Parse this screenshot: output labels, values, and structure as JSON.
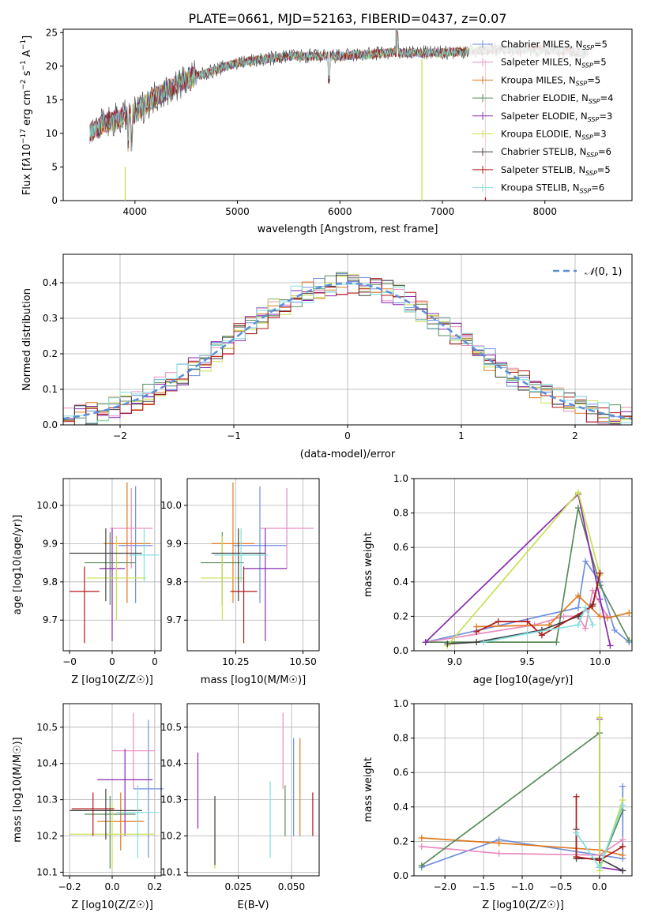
{
  "figure_title": "PLATE=0661, MJD=52163, FIBERID=0437, z=0.07",
  "colors": {
    "chabrier_miles": "#6f8fe0",
    "salpeter_miles": "#e88cc0",
    "kroupa_miles": "#e07a20",
    "chabrier_elodie": "#5a8a5a",
    "salpeter_elodie": "#8a2ab0",
    "kroupa_elodie": "#c8e050",
    "chabrier_stelib": "#404040",
    "salpeter_stelib": "#b01818",
    "kroupa_stelib": "#80dede"
  },
  "chart_data": [
    {
      "id": "spectrum",
      "type": "line",
      "xlabel": "wavelength [Angstrom, rest frame]",
      "ylabel": "Flux [f_λ10^-17 erg cm^-2 s^-1 A^-1]",
      "xlim": [
        3300,
        8850
      ],
      "ylim": [
        0,
        25.5
      ],
      "xticks": [
        4000,
        5000,
        6000,
        7000,
        8000
      ],
      "yticks": [
        0,
        5,
        10,
        15,
        20,
        25
      ],
      "grid": false,
      "legend_position": "right",
      "series": [
        {
          "name": "Chabrier MILES, N_SSP=5",
          "key": "chabrier_miles"
        },
        {
          "name": "Salpeter MILES, N_SSP=5",
          "key": "salpeter_miles"
        },
        {
          "name": "Kroupa MILES, N_SSP=5",
          "key": "kroupa_miles"
        },
        {
          "name": "Chabrier ELODIE, N_SSP=4",
          "key": "chabrier_elodie"
        },
        {
          "name": "Salpeter ELODIE, N_SSP=3",
          "key": "salpeter_elodie"
        },
        {
          "name": "Kroupa ELODIE, N_SSP=3",
          "key": "kroupa_elodie"
        },
        {
          "name": "Chabrier STELIB, N_SSP=6",
          "key": "chabrier_stelib"
        },
        {
          "name": "Salpeter STELIB, N_SSP=5",
          "key": "salpeter_stelib"
        },
        {
          "name": "Kroupa STELIB, N_SSP=6",
          "key": "kroupa_stelib"
        }
      ],
      "continuum": [
        [
          3550,
          10
        ],
        [
          3700,
          11.5
        ],
        [
          3900,
          12.5
        ],
        [
          4000,
          13
        ],
        [
          4200,
          15.5
        ],
        [
          4500,
          18
        ],
        [
          4800,
          19.5
        ],
        [
          5000,
          20.5
        ],
        [
          5500,
          21.5
        ],
        [
          6000,
          21.5
        ],
        [
          6500,
          22.0
        ],
        [
          7000,
          22.0
        ],
        [
          7500,
          22.5
        ],
        [
          8000,
          22.5
        ],
        [
          8400,
          22.0
        ]
      ]
    },
    {
      "id": "residuals",
      "type": "area",
      "xlabel": "(data-model)/error",
      "ylabel": "Normed distribution",
      "xlim": [
        -2.5,
        2.5
      ],
      "ylim": [
        0,
        0.48
      ],
      "xticks": [
        -2,
        -1,
        0,
        1,
        2
      ],
      "yticks": [
        0.0,
        0.1,
        0.2,
        0.3,
        0.4
      ],
      "grid": true,
      "legend_position": "top-right",
      "legend_label": "N(0,1)",
      "bin_width": 0.1
    },
    {
      "id": "age_vs_Z",
      "type": "scatter",
      "xlabel": "Z [log10(Z/Z☉)]",
      "ylabel": "age  [log10(age/yr)]",
      "xlim": [
        -0.23,
        0.23
      ],
      "ylim": [
        9.62,
        10.07
      ],
      "xticks": [
        -0.2,
        0.0,
        0.2
      ],
      "yticks": [
        9.7,
        9.8,
        9.9,
        10.0
      ],
      "grid": true,
      "points": [
        {
          "key": "chabrier_miles",
          "x": 0.11,
          "xerr": 0.08,
          "y": 9.895,
          "ylo": 9.745,
          "yhi": 10.05
        },
        {
          "key": "salpeter_miles",
          "x": 0.09,
          "xerr": 0.1,
          "y": 9.94,
          "ylo": 9.835,
          "yhi": 10.045
        },
        {
          "key": "kroupa_miles",
          "x": 0.07,
          "xerr": 0.11,
          "y": 9.9,
          "ylo": 9.745,
          "yhi": 10.06
        },
        {
          "key": "chabrier_elodie",
          "x": -0.01,
          "xerr": 0.12,
          "y": 9.85,
          "ylo": 9.74,
          "yhi": 9.93
        },
        {
          "key": "salpeter_elodie",
          "x": 0.0,
          "xerr": 0.06,
          "y": 9.835,
          "ylo": 9.645,
          "yhi": 9.94
        },
        {
          "key": "kroupa_elodie",
          "x": 0.02,
          "xerr": 0.14,
          "y": 9.81,
          "ylo": 9.7,
          "yhi": 9.92
        },
        {
          "key": "chabrier_stelib",
          "x": -0.03,
          "xerr": 0.17,
          "y": 9.875,
          "ylo": 9.75,
          "yhi": 9.94
        },
        {
          "key": "salpeter_stelib",
          "x": -0.13,
          "xerr": 0.07,
          "y": 9.775,
          "ylo": 9.64,
          "yhi": 9.84
        },
        {
          "key": "kroupa_stelib",
          "x": 0.15,
          "xerr": 0.07,
          "y": 9.87,
          "ylo": 9.8,
          "yhi": 9.94
        }
      ]
    },
    {
      "id": "age_vs_mass",
      "type": "scatter",
      "xlabel": "mass [log10(M/M☉)]",
      "ylabel": "",
      "xlim": [
        10.07,
        10.56
      ],
      "ylim": [
        9.62,
        10.07
      ],
      "xticks": [
        10.25,
        10.5
      ],
      "yticks": [
        9.7,
        9.8,
        9.9,
        10.0
      ],
      "grid": true,
      "points": [
        {
          "key": "chabrier_miles",
          "x": 10.34,
          "xerr": 0.1,
          "y": 9.895,
          "ylo": 9.745,
          "yhi": 10.05
        },
        {
          "key": "salpeter_miles",
          "x": 10.44,
          "xerr": 0.1,
          "y": 9.94,
          "ylo": 9.835,
          "yhi": 10.045
        },
        {
          "key": "kroupa_miles",
          "x": 10.24,
          "xerr": 0.08,
          "y": 9.9,
          "ylo": 9.745,
          "yhi": 10.06
        },
        {
          "key": "chabrier_elodie",
          "x": 10.2,
          "xerr": 0.08,
          "y": 9.85,
          "ylo": 9.74,
          "yhi": 9.93
        },
        {
          "key": "salpeter_elodie",
          "x": 10.36,
          "xerr": 0.08,
          "y": 9.835,
          "ylo": 9.645,
          "yhi": 9.94
        },
        {
          "key": "kroupa_elodie",
          "x": 10.2,
          "xerr": 0.08,
          "y": 9.81,
          "ylo": 9.7,
          "yhi": 9.92
        },
        {
          "key": "chabrier_stelib",
          "x": 10.26,
          "xerr": 0.1,
          "y": 9.875,
          "ylo": 9.75,
          "yhi": 9.94
        },
        {
          "key": "salpeter_stelib",
          "x": 10.28,
          "xerr": 0.05,
          "y": 9.775,
          "ylo": 9.64,
          "yhi": 9.84
        },
        {
          "key": "kroupa_stelib",
          "x": 10.27,
          "xerr": 0.1,
          "y": 9.87,
          "ylo": 9.8,
          "yhi": 9.94
        }
      ]
    },
    {
      "id": "weight_vs_age",
      "type": "line",
      "xlabel": "age  [log10(age/yr)]",
      "ylabel": "mass weight",
      "xlim": [
        8.72,
        10.22
      ],
      "ylim": [
        0,
        1.0
      ],
      "xticks": [
        9.0,
        9.5,
        10.0
      ],
      "yticks": [
        0.0,
        0.2,
        0.4,
        0.6,
        0.8,
        1.0
      ],
      "grid": true,
      "series": [
        {
          "key": "chabrier_miles",
          "x": [
            8.8,
            9.85,
            9.9,
            10.0,
            10.1,
            10.2
          ],
          "y": [
            0.05,
            0.25,
            0.52,
            0.4,
            0.12,
            0.05
          ]
        },
        {
          "key": "salpeter_miles",
          "x": [
            8.8,
            9.55,
            9.75,
            9.85,
            9.9,
            9.95,
            10.05
          ],
          "y": [
            0.05,
            0.15,
            0.2,
            0.2,
            0.13,
            0.35,
            0.2
          ]
        },
        {
          "key": "kroupa_miles",
          "x": [
            9.15,
            9.65,
            9.85,
            10.0,
            10.05,
            10.2
          ],
          "y": [
            0.14,
            0.15,
            0.32,
            0.2,
            0.19,
            0.22
          ]
        },
        {
          "key": "chabrier_elodie",
          "x": [
            8.8,
            9.7,
            9.85,
            10.0,
            10.2
          ],
          "y": [
            0.05,
            0.05,
            0.83,
            0.38,
            0.06
          ]
        },
        {
          "key": "salpeter_elodie",
          "x": [
            8.8,
            9.85,
            10.0,
            10.07
          ],
          "y": [
            0.05,
            0.91,
            0.3,
            0.03
          ]
        },
        {
          "key": "kroupa_elodie",
          "x": [
            8.95,
            9.85,
            10.0
          ],
          "y": [
            0.03,
            0.92,
            0.44
          ]
        },
        {
          "key": "chabrier_stelib",
          "x": [
            8.95,
            9.15,
            9.6,
            9.85,
            9.95,
            10.0
          ],
          "y": [
            0.04,
            0.05,
            0.12,
            0.2,
            0.27,
            0.45
          ]
        },
        {
          "key": "salpeter_stelib",
          "x": [
            9.15,
            9.3,
            9.5,
            9.6,
            9.95,
            10.0
          ],
          "y": [
            0.11,
            0.17,
            0.17,
            0.09,
            0.26,
            0.45
          ]
        },
        {
          "key": "kroupa_stelib",
          "x": [
            9.2,
            9.5,
            9.85,
            9.9,
            9.95
          ],
          "y": [
            0.05,
            0.1,
            0.15,
            0.25,
            0.15
          ]
        }
      ]
    },
    {
      "id": "mass_vs_Z",
      "type": "scatter",
      "xlabel": "Z [log10(Z/Z☉)]",
      "ylabel": "mass [log10(M/M☉)]",
      "xlim": [
        -0.23,
        0.23
      ],
      "ylim": [
        10.09,
        10.565
      ],
      "xticks": [
        -0.2,
        0.0,
        0.2
      ],
      "yticks": [
        10.1,
        10.2,
        10.3,
        10.4,
        10.5
      ],
      "grid": true,
      "points": [
        {
          "key": "chabrier_miles",
          "x": 0.17,
          "xerr": 0.07,
          "y": 10.33,
          "ylo": 10.14,
          "yhi": 10.52
        },
        {
          "key": "salpeter_miles",
          "x": 0.1,
          "xerr": 0.1,
          "y": 10.435,
          "ylo": 10.33,
          "yhi": 10.54
        },
        {
          "key": "kroupa_miles",
          "x": 0.04,
          "xerr": 0.11,
          "y": 10.24,
          "ylo": 10.16,
          "yhi": 10.32
        },
        {
          "key": "chabrier_elodie",
          "x": -0.01,
          "xerr": 0.12,
          "y": 10.26,
          "ylo": 10.11,
          "yhi": 10.31
        },
        {
          "key": "salpeter_elodie",
          "x": 0.06,
          "xerr": 0.13,
          "y": 10.355,
          "ylo": 10.2,
          "yhi": 10.44
        },
        {
          "key": "kroupa_elodie",
          "x": 0.0,
          "xerr": 0.2,
          "y": 10.205,
          "ylo": 10.11,
          "yhi": 10.29
        },
        {
          "key": "chabrier_stelib",
          "x": -0.03,
          "xerr": 0.17,
          "y": 10.27,
          "ylo": 10.19,
          "yhi": 10.33
        },
        {
          "key": "salpeter_stelib",
          "x": -0.09,
          "xerr": 0.1,
          "y": 10.275,
          "ylo": 10.2,
          "yhi": 10.32
        },
        {
          "key": "kroupa_stelib",
          "x": 0.12,
          "xerr": 0.1,
          "y": 10.265,
          "ylo": 10.14,
          "yhi": 10.34
        }
      ]
    },
    {
      "id": "mass_vs_ebv",
      "type": "scatter",
      "xlabel": "E(B-V)",
      "ylabel": "",
      "xlim": [
        0.001,
        0.063
      ],
      "ylim": [
        10.09,
        10.565
      ],
      "xticks": [
        0.025,
        0.05
      ],
      "yticks": [
        10.1,
        10.2,
        10.3,
        10.4,
        10.5
      ],
      "grid": true,
      "points": [
        {
          "key": "chabrier_miles",
          "x": 0.051,
          "y": 10.33,
          "ylo": 10.2,
          "yhi": 10.47
        },
        {
          "key": "salpeter_miles",
          "x": 0.046,
          "y": 10.435,
          "ylo": 10.33,
          "yhi": 10.54
        },
        {
          "key": "kroupa_miles",
          "x": 0.054,
          "y": 10.24,
          "ylo": 10.2,
          "yhi": 10.47
        },
        {
          "key": "chabrier_elodie",
          "x": 0.047,
          "y": 10.26,
          "ylo": 10.2,
          "yhi": 10.34
        },
        {
          "key": "salpeter_elodie",
          "x": 0.006,
          "y": 10.355,
          "ylo": 10.22,
          "yhi": 10.43
        },
        {
          "key": "kroupa_elodie",
          "x": 0.014,
          "y": 10.205,
          "ylo": 10.11,
          "yhi": 10.3
        },
        {
          "key": "chabrier_stelib",
          "x": 0.014,
          "y": 10.27,
          "ylo": 10.12,
          "yhi": 10.31
        },
        {
          "key": "salpeter_stelib",
          "x": 0.06,
          "y": 10.275,
          "ylo": 10.2,
          "yhi": 10.32
        },
        {
          "key": "kroupa_stelib",
          "x": 0.04,
          "y": 10.265,
          "ylo": 10.14,
          "yhi": 10.35
        }
      ]
    },
    {
      "id": "weight_vs_Z",
      "type": "line",
      "xlabel": "Z [log10(Z/Z☉)]",
      "ylabel": "mass weight",
      "xlim": [
        -2.4,
        0.42
      ],
      "ylim": [
        0,
        1.0
      ],
      "xticks": [
        -2.0,
        -1.5,
        -1.0,
        -0.5,
        0.0
      ],
      "yticks": [
        0.0,
        0.2,
        0.4,
        0.6,
        0.8,
        1.0
      ],
      "grid": true,
      "series": [
        {
          "key": "chabrier_miles",
          "x": [
            -2.3,
            -1.3,
            0.0,
            0.3,
            0.3
          ],
          "y": [
            0.05,
            0.21,
            0.12,
            0.1,
            0.52
          ]
        },
        {
          "key": "salpeter_miles",
          "x": [
            -2.3,
            -1.3,
            0.0,
            0.3
          ],
          "y": [
            0.17,
            0.13,
            0.12,
            0.21
          ]
        },
        {
          "key": "kroupa_miles",
          "x": [
            -2.3,
            -1.3,
            0.0,
            0.3
          ],
          "y": [
            0.22,
            0.19,
            0.15,
            0.12
          ]
        },
        {
          "key": "chabrier_elodie",
          "x": [
            -2.3,
            0.0,
            0.0,
            0.3
          ],
          "y": [
            0.06,
            0.83,
            0.05,
            0.38
          ]
        },
        {
          "key": "salpeter_elodie",
          "x": [
            0.0,
            0.0,
            0.3
          ],
          "y": [
            0.91,
            0.05,
            0.03
          ]
        },
        {
          "key": "kroupa_elodie",
          "x": [
            0.0,
            0.0,
            0.3
          ],
          "y": [
            0.92,
            0.03,
            0.44
          ]
        },
        {
          "key": "chabrier_stelib",
          "x": [
            -0.3,
            -0.3,
            0.0,
            0.3
          ],
          "y": [
            0.27,
            0.1,
            0.1,
            0.03
          ]
        },
        {
          "key": "salpeter_stelib",
          "x": [
            -0.3,
            -0.3,
            0.0,
            0.3
          ],
          "y": [
            0.46,
            0.11,
            0.09,
            0.17
          ]
        },
        {
          "key": "kroupa_stelib",
          "x": [
            -0.3,
            0.0,
            0.3
          ],
          "y": [
            0.25,
            0.05,
            0.41
          ]
        }
      ]
    }
  ]
}
